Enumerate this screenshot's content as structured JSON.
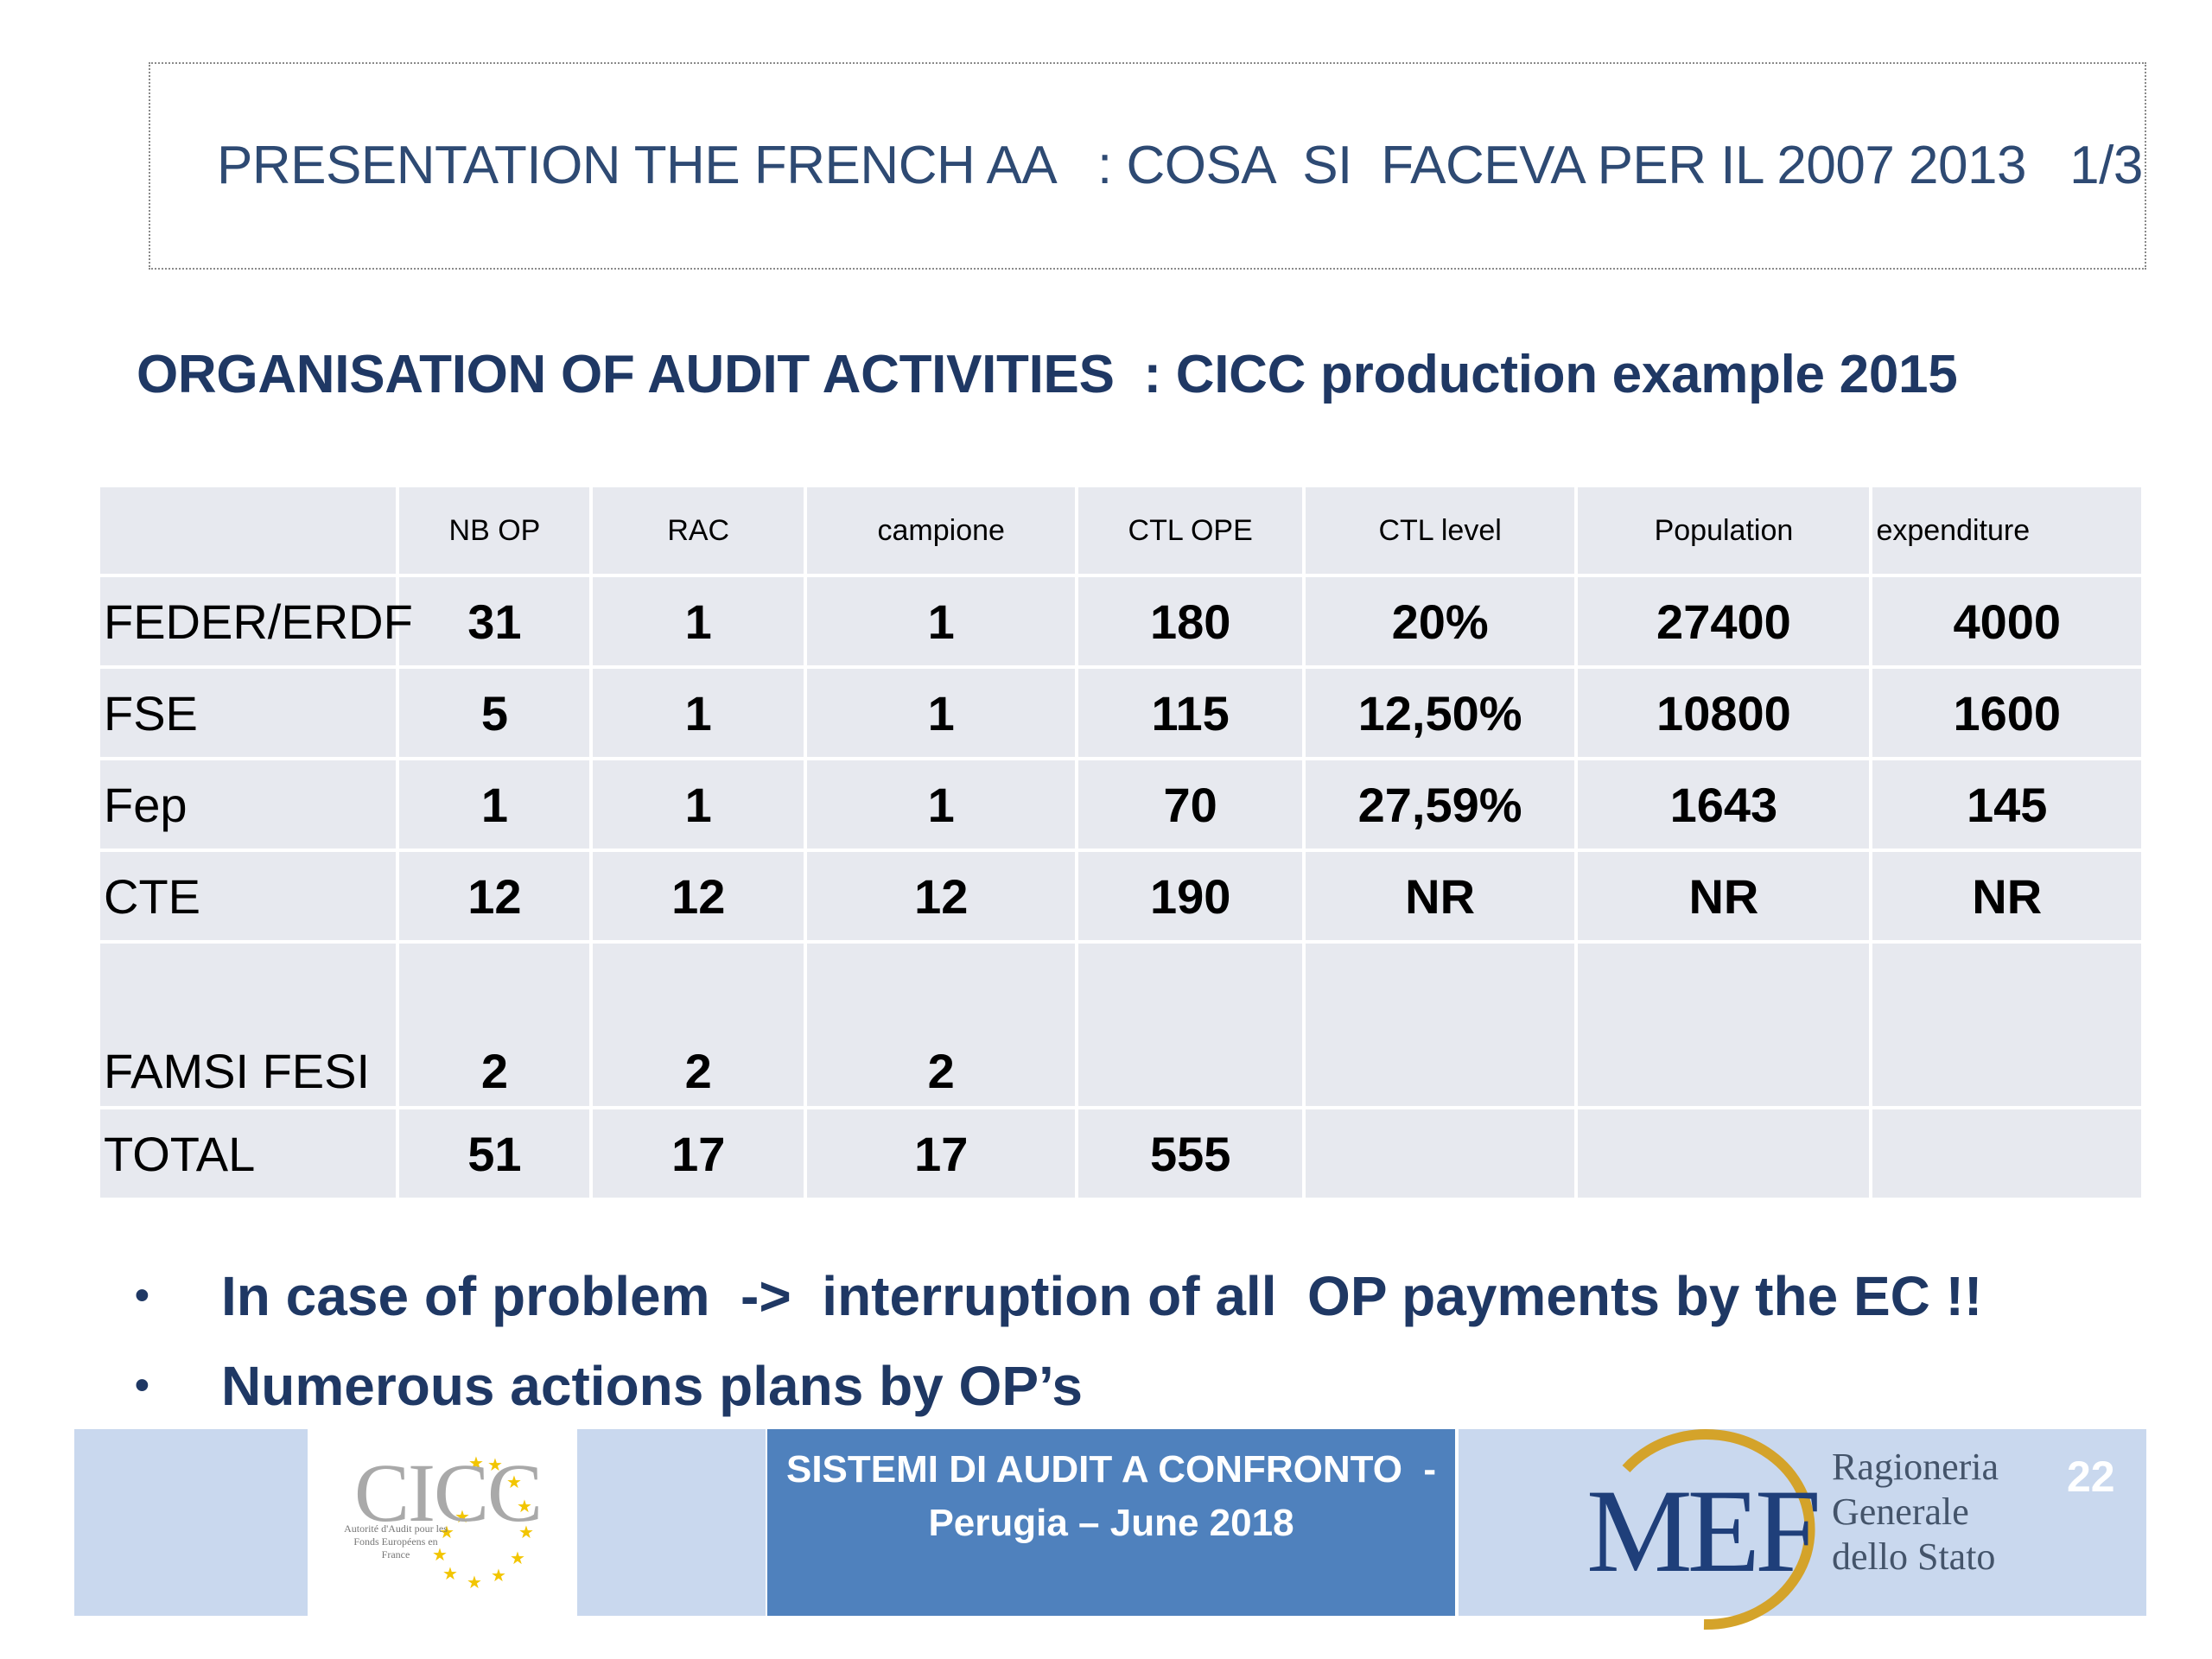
{
  "title": {
    "prefix": "PRESENTATION THE FRENCH AA   : COSA  SI  FACEVA PER IL 2007 2013   1/3"
  },
  "subtitle": "ORGANISATION OF AUDIT ACTIVITIES  : CICC production example 2015",
  "table": {
    "headers": [
      "",
      "NB OP",
      "RAC",
      "campione",
      "CTL OPE",
      "CTL level",
      "Population",
      "expenditure"
    ],
    "rows": [
      [
        "FEDER/ERDF",
        "31",
        "1",
        "1",
        "180",
        "20%",
        "27400",
        "4000"
      ],
      [
        "FSE",
        "5",
        "1",
        "1",
        "115",
        "12,50%",
        "10800",
        "1600"
      ],
      [
        "Fep",
        "1",
        "1",
        "1",
        "70",
        "27,59%",
        "1643",
        "145"
      ],
      [
        "CTE",
        "12",
        "12",
        "12",
        "190",
        "NR",
        "NR",
        "NR"
      ],
      [
        "FAMSI FESI",
        "2",
        "2",
        "2",
        "",
        "",
        "",
        ""
      ],
      [
        "TOTAL",
        "51",
        "17",
        "17",
        "555",
        "",
        "",
        ""
      ]
    ]
  },
  "bullets": [
    "In case of problem  ->  interruption of all  OP payments by the EC !!",
    "Numerous actions plans by OP’s"
  ],
  "footer": {
    "event_line1": "SISTEMI DI AUDIT A CONFRONTO  -",
    "event_line2": "Perugia – June 2018",
    "cicc_logo_text": "CICC",
    "cicc_logo_small": "Autorité d'Audit pour les Fonds Européens en France",
    "mef_logo_text": "MEF",
    "mef_org_line1": "Ragioneria",
    "mef_org_line2": "Generale",
    "mef_org_line3": "dello Stato",
    "page_number": "22"
  },
  "colors": {
    "title_blue": "#2e4a73",
    "heading_navy": "#1f3864",
    "table_cell": "#e7e9ef",
    "footer_light": "#c9d8ee",
    "footer_dark": "#4f81bd",
    "mef_gold": "#d4a32a"
  }
}
